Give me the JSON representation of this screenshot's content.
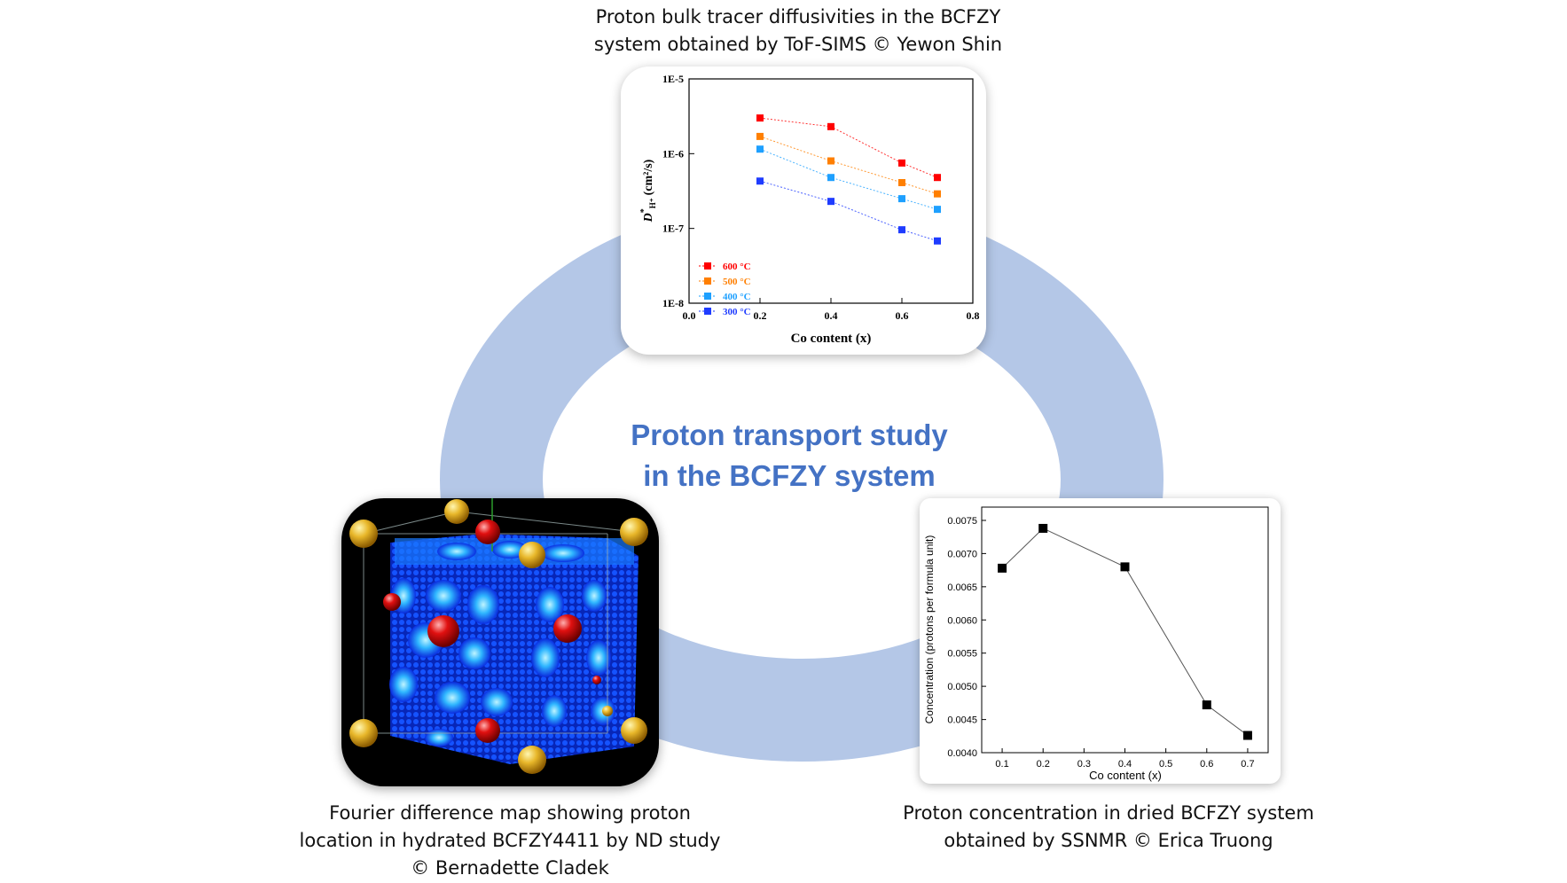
{
  "center_title": {
    "line1": "Proton transport study",
    "line2": "in the BCFZY system"
  },
  "colors": {
    "ring": "#b4c7e7",
    "title": "#4472c4",
    "s600": "#ff0000",
    "s500": "#ff7f00",
    "s400": "#1ea0ff",
    "s300": "#1f3cff"
  },
  "panels": {
    "top": {
      "caption_line1": "Proton bulk tracer diffusivities in the BCFZY",
      "caption_line2": "system obtained by ToF-SIMS © Yewon Shin",
      "xlabel": "Co content (x)",
      "ylabel_main": "D",
      "ylabel_sup": "*",
      "ylabel_sub": "H⁺",
      "ylabel_unit": "(cm²/s)",
      "y_ticks": [
        "1E-5",
        "1E-6",
        "1E-7",
        "1E-8"
      ],
      "x_ticks": [
        "0.0",
        "0.2",
        "0.4",
        "0.6",
        "0.8"
      ]
    },
    "left": {
      "caption_line1": "Fourier difference map showing proton",
      "caption_line2": "location in hydrated BCFZY4411 by ND study",
      "caption_line3": "© Bernadette Cladek",
      "image_icon": "crystal-structure-map"
    },
    "right": {
      "caption_line1": "Proton concentration in dried BCFZY system",
      "caption_line2": "obtained by SSNMR © Erica Truong",
      "xlabel": "Co content (x)",
      "ylabel": "Concentration (protons per formula unit)",
      "y_ticks": [
        "0.0040",
        "0.0045",
        "0.0050",
        "0.0055",
        "0.0060",
        "0.0065",
        "0.0070",
        "0.0075"
      ],
      "x_ticks": [
        "0.1",
        "0.2",
        "0.3",
        "0.4",
        "0.5",
        "0.6",
        "0.7"
      ]
    }
  },
  "chart_data": [
    {
      "type": "scatter",
      "xlabel": "Co content (x)",
      "ylabel": "D*H+ (cm2/s)",
      "xlim": [
        0.0,
        0.8
      ],
      "ylim": [
        1e-08,
        1e-05
      ],
      "yscale": "log",
      "legend_position": "bottom-left",
      "x": [
        0.2,
        0.4,
        0.6,
        0.7
      ],
      "series": [
        {
          "name": "600 °C",
          "color": "#ff0000",
          "values": [
            3e-06,
            2.3e-06,
            7.5e-07,
            4.8e-07
          ]
        },
        {
          "name": "500 °C",
          "color": "#ff7f00",
          "values": [
            1.7e-06,
            8e-07,
            4.1e-07,
            2.9e-07
          ]
        },
        {
          "name": "400 °C",
          "color": "#1ea0ff",
          "values": [
            1.15e-06,
            4.8e-07,
            2.5e-07,
            1.8e-07
          ]
        },
        {
          "name": "300 °C",
          "color": "#1f3cff",
          "values": [
            4.3e-07,
            2.3e-07,
            9.6e-08,
            6.8e-08
          ]
        }
      ]
    },
    {
      "type": "line",
      "xlabel": "Co content (x)",
      "ylabel": "Concentration (protons per formula unit)",
      "xlim": [
        0.05,
        0.75
      ],
      "ylim": [
        0.004,
        0.0077
      ],
      "x": [
        0.1,
        0.2,
        0.4,
        0.6,
        0.7
      ],
      "values": [
        0.00678,
        0.00738,
        0.0068,
        0.00472,
        0.00426
      ]
    }
  ]
}
